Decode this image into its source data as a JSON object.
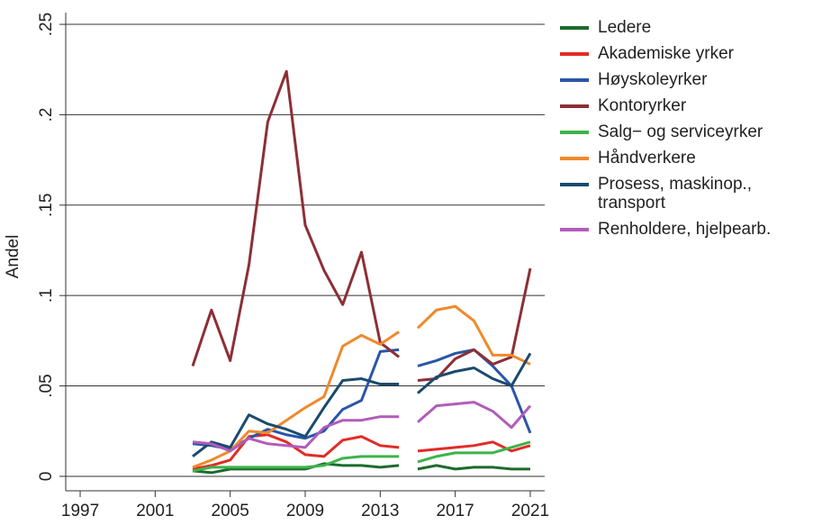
{
  "chart_data": {
    "type": "line",
    "y_label": "Andel",
    "x": [
      2003,
      2004,
      2005,
      2006,
      2007,
      2008,
      2009,
      2010,
      2011,
      2012,
      2013,
      2014,
      null,
      2015,
      2016,
      2017,
      2018,
      2019,
      2020,
      2021
    ],
    "xlim": [
      1996.23,
      2021.77
    ],
    "xticks": [
      1997,
      2001,
      2005,
      2009,
      2013,
      2017,
      2021
    ],
    "ylim": [
      -0.008,
      0.2565
    ],
    "yticks": [
      0,
      {
        "value": 0.05,
        "label": ".05"
      },
      {
        "value": 0.1,
        "label": ".1"
      },
      {
        "value": 0.15,
        "label": ".15"
      },
      {
        "value": 0.2,
        "label": ".2"
      },
      {
        "value": 0.25,
        "label": ".25"
      }
    ],
    "grid": true,
    "legend": "right",
    "series": [
      {
        "name": "Ledere",
        "color": "#1d6b2c",
        "values": [
          0.003,
          0.002,
          0.004,
          0.004,
          0.004,
          0.004,
          0.004,
          0.007,
          0.006,
          0.006,
          0.005,
          0.006,
          null,
          0.004,
          0.006,
          0.004,
          0.005,
          0.005,
          0.004,
          0.004
        ]
      },
      {
        "name": "Akademiske yrker",
        "color": "#e32b26",
        "values": [
          0.004,
          0.006,
          0.009,
          0.022,
          0.023,
          0.019,
          0.012,
          0.011,
          0.02,
          0.022,
          0.017,
          0.016,
          null,
          0.014,
          0.015,
          0.016,
          0.017,
          0.019,
          0.014,
          0.017
        ]
      },
      {
        "name": "Høyskoleyrker",
        "color": "#2a56a8",
        "values": [
          0.018,
          0.017,
          0.015,
          0.021,
          0.026,
          0.023,
          0.021,
          0.025,
          0.037,
          0.042,
          0.069,
          0.07,
          null,
          0.061,
          0.064,
          0.068,
          0.07,
          0.061,
          0.05,
          0.024
        ]
      },
      {
        "name": "Kontoryrker",
        "color": "#8c2f35",
        "values": [
          0.061,
          0.092,
          0.064,
          0.117,
          0.196,
          0.224,
          0.139,
          0.114,
          0.095,
          0.124,
          0.074,
          0.066,
          null,
          0.053,
          0.054,
          0.065,
          0.07,
          0.062,
          0.066,
          0.115
        ]
      },
      {
        "name": "Salg− og serviceyrker",
        "color": "#3db34a",
        "values": [
          0.003,
          0.005,
          0.005,
          0.005,
          0.005,
          0.005,
          0.005,
          0.006,
          0.01,
          0.011,
          0.011,
          0.011,
          null,
          0.008,
          0.011,
          0.013,
          0.013,
          0.013,
          0.016,
          0.019
        ]
      },
      {
        "name": "Håndverkere",
        "color": "#f0892a",
        "values": [
          0.005,
          0.009,
          0.014,
          0.025,
          0.024,
          0.031,
          0.038,
          0.044,
          0.072,
          0.078,
          0.073,
          0.08,
          null,
          0.082,
          0.092,
          0.094,
          0.086,
          0.067,
          0.067,
          0.062
        ]
      },
      {
        "name": "Prosess, maskinop., transport",
        "color": "#1b4a6f",
        "values": [
          0.011,
          0.019,
          0.016,
          0.034,
          0.029,
          0.026,
          0.022,
          0.038,
          0.053,
          0.054,
          0.051,
          0.051,
          null,
          0.046,
          0.055,
          0.058,
          0.06,
          0.054,
          0.05,
          0.068
        ]
      },
      {
        "name": "Renholdere, hjelpearb.",
        "color": "#b25cba",
        "values": [
          0.019,
          0.018,
          0.014,
          0.021,
          0.018,
          0.017,
          0.016,
          0.027,
          0.031,
          0.031,
          0.033,
          0.033,
          null,
          0.03,
          0.039,
          0.04,
          0.041,
          0.036,
          0.027,
          0.039
        ]
      }
    ]
  }
}
